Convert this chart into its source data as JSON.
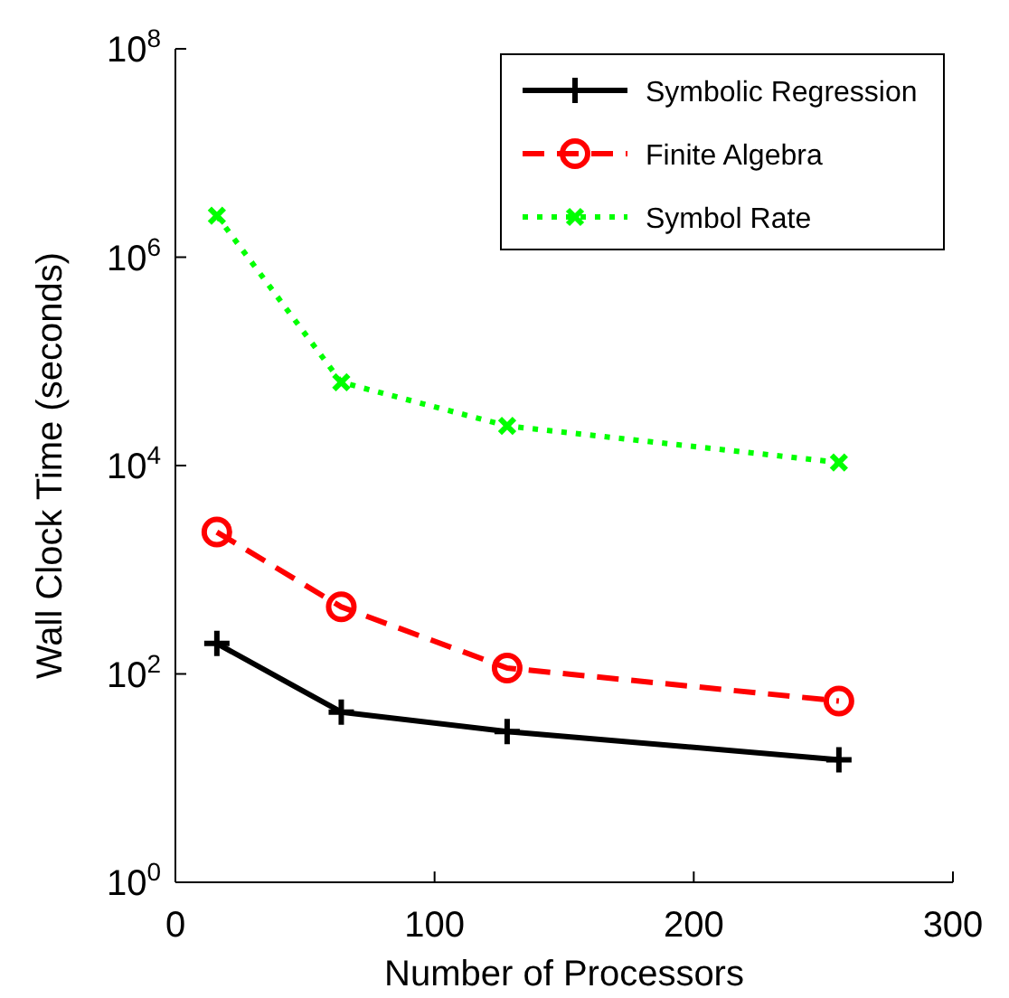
{
  "chart_data": {
    "type": "line",
    "xlabel": "Number of Processors",
    "ylabel": "Wall Clock Time (seconds)",
    "log": true,
    "grid": false,
    "legend": "top right",
    "x": [
      16,
      64,
      128,
      256
    ],
    "xlim": [
      0,
      300
    ],
    "xticks": [
      0,
      100,
      200,
      300
    ],
    "ylim": [
      1,
      100000000
    ],
    "yticks": [
      {
        "value": 1,
        "label": "10$^{0}$"
      },
      {
        "value": 100,
        "label": "10$^{2}$"
      },
      {
        "value": 10000,
        "label": "10$^{4}$"
      },
      {
        "value": 1000000,
        "label": "10$^{6}$"
      },
      {
        "value": 100000000,
        "label": "10$^{8}$"
      }
    ],
    "series": [
      {
        "name": "Symbolic Regression",
        "color": "#000000",
        "marker": "cross",
        "line_style": "solid",
        "values": [
          196,
          43,
          28,
          15
        ]
      },
      {
        "name": "Finite Algebra",
        "color": "#ff0000",
        "marker": "circle",
        "line_style": "dashed",
        "values": [
          2300,
          440,
          114,
          55
        ]
      },
      {
        "name": "Symbol Rate",
        "color": "#00ff00",
        "marker": "x",
        "line_style": "dotted",
        "values": [
          2500000,
          63000,
          24000,
          10700
        ]
      }
    ]
  }
}
